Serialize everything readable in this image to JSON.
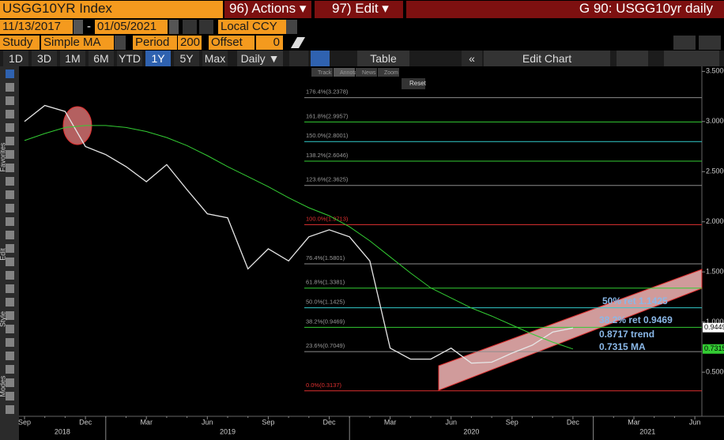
{
  "header": {
    "ticker": "USGG10YR Index",
    "actions": "96) Actions ▾",
    "edit": "97) Edit ▾",
    "title": "G 90: USGG10yr daily"
  },
  "range": {
    "start": "11/13/2017",
    "dash": "-",
    "end": "01/05/2021",
    "currency": "Local CCY"
  },
  "study": {
    "label": "Study",
    "name": "Simple MA",
    "period_label": "Period",
    "period": "200",
    "offset_label": "Offset",
    "offset": "0"
  },
  "periods": [
    "1D",
    "3D",
    "1M",
    "6M",
    "YTD",
    "1Y",
    "5Y",
    "Max"
  ],
  "frequency": "Daily ▼",
  "table": "Table",
  "back": "«",
  "edit_chart": "Edit Chart",
  "tools": [
    "Track",
    "Annotate",
    "News",
    "Zoom"
  ],
  "reset": "Reset",
  "side_labels": [
    "Favorites",
    "Edit",
    "Style",
    "Modes"
  ],
  "chart_data": {
    "type": "line",
    "categories": [
      "Sep",
      null,
      null,
      "Dec",
      null,
      null,
      "Mar",
      null,
      null,
      "Jun",
      null,
      null,
      "Sep",
      null,
      null,
      "Dec",
      null,
      null,
      "Mar",
      null,
      null,
      "Jun",
      null,
      null,
      "Sep",
      null,
      null,
      "Dec",
      null,
      null,
      "Mar",
      null,
      null,
      "Jun"
    ],
    "x_groups": [
      "2018",
      "2019",
      "2020",
      "2021"
    ],
    "series": [
      {
        "color": "#e6e6e6",
        "values": [
          3.0,
          3.16,
          3.1,
          2.75,
          2.67,
          2.55,
          2.4,
          2.57,
          2.32,
          2.08,
          2.04,
          1.53,
          1.73,
          1.61,
          1.85,
          1.92,
          1.85,
          1.61,
          0.74,
          0.63,
          0.63,
          0.74,
          0.59,
          0.6,
          0.69,
          0.77,
          0.9,
          0.94,
          null,
          null,
          null,
          null,
          null,
          null
        ]
      },
      {
        "color": "#33cc33",
        "values": [
          2.81,
          2.88,
          2.94,
          2.96,
          2.96,
          2.94,
          2.9,
          2.84,
          2.76,
          2.66,
          2.55,
          2.45,
          2.35,
          2.24,
          2.14,
          2.06,
          1.95,
          1.81,
          1.65,
          1.49,
          1.34,
          1.24,
          1.14,
          1.06,
          0.97,
          0.88,
          0.8,
          0.7315,
          null,
          null,
          null,
          null,
          null,
          null
        ]
      }
    ],
    "ylim": [
      0.06,
      3.55
    ],
    "yticks": [
      {
        "value": 0.5,
        "label": "0.5000"
      },
      {
        "value": 1.0,
        "label": "1.0000"
      },
      {
        "value": 1.5,
        "label": "1.5000"
      },
      {
        "value": 2.0,
        "label": "2.0000"
      },
      {
        "value": 2.5,
        "label": "2.5000"
      },
      {
        "value": 3.0,
        "label": "3.0000"
      },
      {
        "value": 3.5,
        "label": "3.5000"
      }
    ],
    "levels": [
      {
        "value": 3.2378,
        "label": "176.4%(3.2378)",
        "color": "#8c8c8c"
      },
      {
        "value": 2.9957,
        "label": "161.8%(2.9957)",
        "color": "#33cc33"
      },
      {
        "value": 2.8001,
        "label": "150.0%(2.8001)",
        "color": "#33cccc"
      },
      {
        "value": 2.6046,
        "label": "138.2%(2.6046)",
        "color": "#33cc33"
      },
      {
        "value": 2.3625,
        "label": "123.6%(2.3625)",
        "color": "#8c8c8c"
      },
      {
        "value": 1.9713,
        "label": "100.0%(1.9713)",
        "color": "#e03030"
      },
      {
        "value": 1.5801,
        "label": "76.4%(1.5801)",
        "color": "#8c8c8c"
      },
      {
        "value": 1.3381,
        "label": "61.8%(1.3381)",
        "color": "#33cc33"
      },
      {
        "value": 1.1425,
        "label": "50.0%(1.1425)",
        "color": "#33cccc"
      },
      {
        "value": 0.9469,
        "label": "38.2%(0.9469)",
        "color": "#33cc33"
      },
      {
        "value": 0.7049,
        "label": "23.6%(0.7049)",
        "color": "#8c8c8c"
      },
      {
        "value": 0.3137,
        "label": "0.0%(0.3137)",
        "color": "#e03030"
      }
    ],
    "annotations": [
      "50% ret 1.1425",
      "38.2% ret 0.9469",
      "0.8717 trend",
      "0.7315 MA"
    ],
    "price_tags": [
      {
        "value": 0.9449,
        "label": "0.9449",
        "color": "#ffffff"
      },
      {
        "value": 0.7315,
        "label": "0.7315",
        "color": "#33cc33"
      }
    ]
  }
}
